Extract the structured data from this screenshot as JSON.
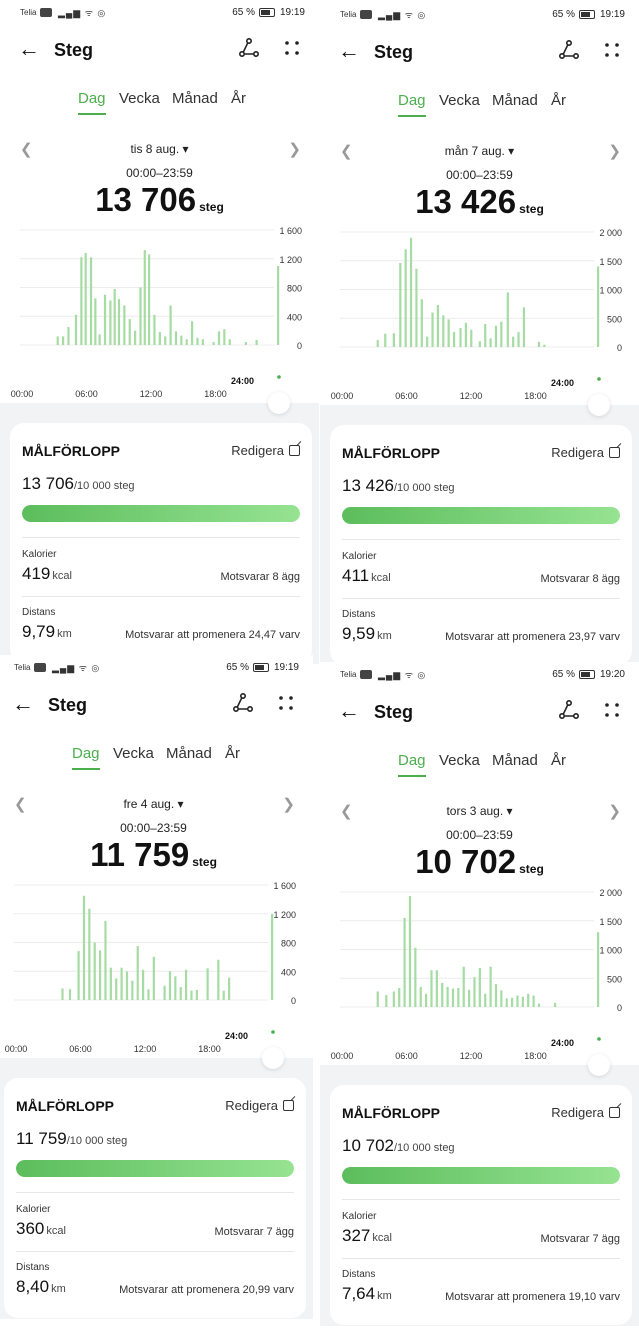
{
  "colors": {
    "accent": "#4cae4c",
    "bar": "#a6dca4",
    "card_bg": "#f1f3f5"
  },
  "icons": {
    "back": "arrow-left-icon",
    "share": "share-icon",
    "more": "more-dots-icon",
    "prev": "chevron-left-icon",
    "next": "chevron-right-icon",
    "dropdown": "caret-down-icon",
    "edit": "edit-icon"
  },
  "common": {
    "title": "Steg",
    "tabs": [
      "Dag",
      "Vecka",
      "Månad",
      "År"
    ],
    "range": "00:00–23:59",
    "steps_unit": "steg",
    "x_ticks": [
      "00:00",
      "06:00",
      "12:00",
      "18:00"
    ],
    "now_label": "24:00",
    "goal_label": "MÅLFÖRLOPP",
    "edit_label": "Redigera",
    "goal_of": "/10 000 steg",
    "calories_label": "Kalorier",
    "kcal_unit": "kcal",
    "distance_label": "Distans",
    "km_unit": "km",
    "carrier": "Telia",
    "carrier_badge": "VoLTE",
    "sys_icons": "▂▄▆ ᯤ ◎",
    "battery": "65 %"
  },
  "panels": [
    {
      "time": "19:19",
      "date": "tis 8 aug. ▾",
      "steps": "13 706",
      "goal_steps": "13 706",
      "goal_fraction": 1.0,
      "calories": "419",
      "calories_eq": "Motsvarar 8 ägg",
      "distance": "9,79",
      "distance_eq": "Motsvarar att promenera 24,47 varv"
    },
    {
      "time": "19:19",
      "date": "mån 7 aug. ▾",
      "steps": "13 426",
      "goal_steps": "13 426",
      "goal_fraction": 1.0,
      "calories": "411",
      "calories_eq": "Motsvarar 8 ägg",
      "distance": "9,59",
      "distance_eq": "Motsvarar att promenera 23,97 varv"
    },
    {
      "time": "19:19",
      "date": "fre 4 aug. ▾",
      "steps": "11 759",
      "goal_steps": "11 759",
      "goal_fraction": 1.0,
      "calories": "360",
      "calories_eq": "Motsvarar 7 ägg",
      "distance": "8,40",
      "distance_eq": "Motsvarar att promenera 20,99 varv"
    },
    {
      "time": "19:20",
      "date": "tors 3 aug. ▾",
      "steps": "10 702",
      "goal_steps": "10 702",
      "goal_fraction": 1.0,
      "calories": "327",
      "calories_eq": "Motsvarar 7 ägg",
      "distance": "7,64",
      "distance_eq": "Motsvarar att promenera 19,10 varv"
    }
  ],
  "chart_data": [
    {
      "type": "bar",
      "x_ticks": [
        "00:00",
        "06:00",
        "12:00",
        "18:00",
        "24:00"
      ],
      "x_unit": "hour",
      "y_ticks": [
        "1 600",
        "1 200",
        "800",
        "400",
        "0"
      ],
      "ylim": [
        0,
        1600
      ],
      "x": [
        3.5,
        4.0,
        4.5,
        5.2,
        5.7,
        6.1,
        6.6,
        7.0,
        7.4,
        7.9,
        8.4,
        8.8,
        9.2,
        9.7,
        10.2,
        10.7,
        11.2,
        11.6,
        12.0,
        12.5,
        13.0,
        13.5,
        14.0,
        14.5,
        15.0,
        15.5,
        16.0,
        16.5,
        17.0,
        18.0,
        18.5,
        19.0,
        19.5,
        21.0,
        22.0,
        24.0
      ],
      "values": [
        120,
        120,
        250,
        420,
        1220,
        1280,
        1220,
        650,
        150,
        700,
        620,
        780,
        640,
        550,
        360,
        200,
        800,
        1320,
        1260,
        420,
        180,
        120,
        550,
        190,
        130,
        80,
        330,
        100,
        80,
        40,
        190,
        220,
        80,
        40,
        70,
        1100
      ]
    },
    {
      "type": "bar",
      "x_ticks": [
        "00:00",
        "06:00",
        "12:00",
        "18:00",
        "24:00"
      ],
      "x_unit": "hour",
      "y_ticks": [
        "2 000",
        "1 500",
        "1 000",
        "500",
        "0"
      ],
      "ylim": [
        0,
        2000
      ],
      "x": [
        3.5,
        4.2,
        5.0,
        5.6,
        6.1,
        6.6,
        7.1,
        7.6,
        8.1,
        8.6,
        9.1,
        9.6,
        10.1,
        10.6,
        11.2,
        11.7,
        12.2,
        13.0,
        13.5,
        14.0,
        14.5,
        15.0,
        15.6,
        16.1,
        16.6,
        17.1,
        18.5,
        19.0,
        24.0
      ],
      "values": [
        120,
        230,
        240,
        1460,
        1700,
        1900,
        1360,
        830,
        180,
        600,
        730,
        550,
        480,
        260,
        330,
        420,
        300,
        100,
        400,
        150,
        370,
        440,
        950,
        180,
        260,
        690,
        90,
        40,
        1400
      ]
    },
    {
      "type": "bar",
      "x_ticks": [
        "00:00",
        "06:00",
        "12:00",
        "18:00",
        "24:00"
      ],
      "x_unit": "hour",
      "y_ticks": [
        "1 600",
        "1 200",
        "800",
        "400",
        "0"
      ],
      "ylim": [
        0,
        1600
      ],
      "x": [
        4.5,
        5.2,
        6.0,
        6.5,
        7.0,
        7.5,
        8.0,
        8.5,
        9.0,
        9.5,
        10.0,
        10.5,
        11.0,
        11.5,
        12.0,
        12.5,
        13.0,
        14.0,
        14.5,
        15.0,
        15.5,
        16.0,
        16.5,
        17.0,
        18.0,
        19.0,
        19.5,
        20.0,
        24.0
      ],
      "values": [
        160,
        150,
        680,
        1450,
        1270,
        800,
        690,
        1100,
        450,
        300,
        450,
        400,
        270,
        750,
        420,
        150,
        600,
        200,
        400,
        330,
        180,
        420,
        130,
        140,
        440,
        560,
        130,
        310,
        1200
      ]
    },
    {
      "type": "bar",
      "x_ticks": [
        "00:00",
        "06:00",
        "12:00",
        "18:00",
        "24:00"
      ],
      "x_unit": "hour",
      "y_ticks": [
        "2 000",
        "1 500",
        "1 000",
        "500",
        "0"
      ],
      "ylim": [
        0,
        2000
      ],
      "x": [
        3.5,
        4.3,
        5.0,
        5.5,
        6.0,
        6.5,
        7.0,
        7.5,
        8.0,
        8.5,
        9.0,
        9.5,
        10.0,
        10.5,
        11.0,
        11.5,
        12.0,
        12.5,
        13.0,
        13.5,
        14.0,
        14.5,
        15.0,
        15.5,
        16.0,
        16.5,
        17.0,
        17.5,
        18.0,
        18.5,
        20.0,
        24.0
      ],
      "values": [
        270,
        210,
        270,
        330,
        1550,
        1930,
        1030,
        350,
        230,
        640,
        640,
        420,
        350,
        320,
        330,
        700,
        300,
        520,
        680,
        230,
        700,
        400,
        290,
        150,
        160,
        200,
        180,
        230,
        200,
        60,
        70,
        1300
      ]
    }
  ]
}
